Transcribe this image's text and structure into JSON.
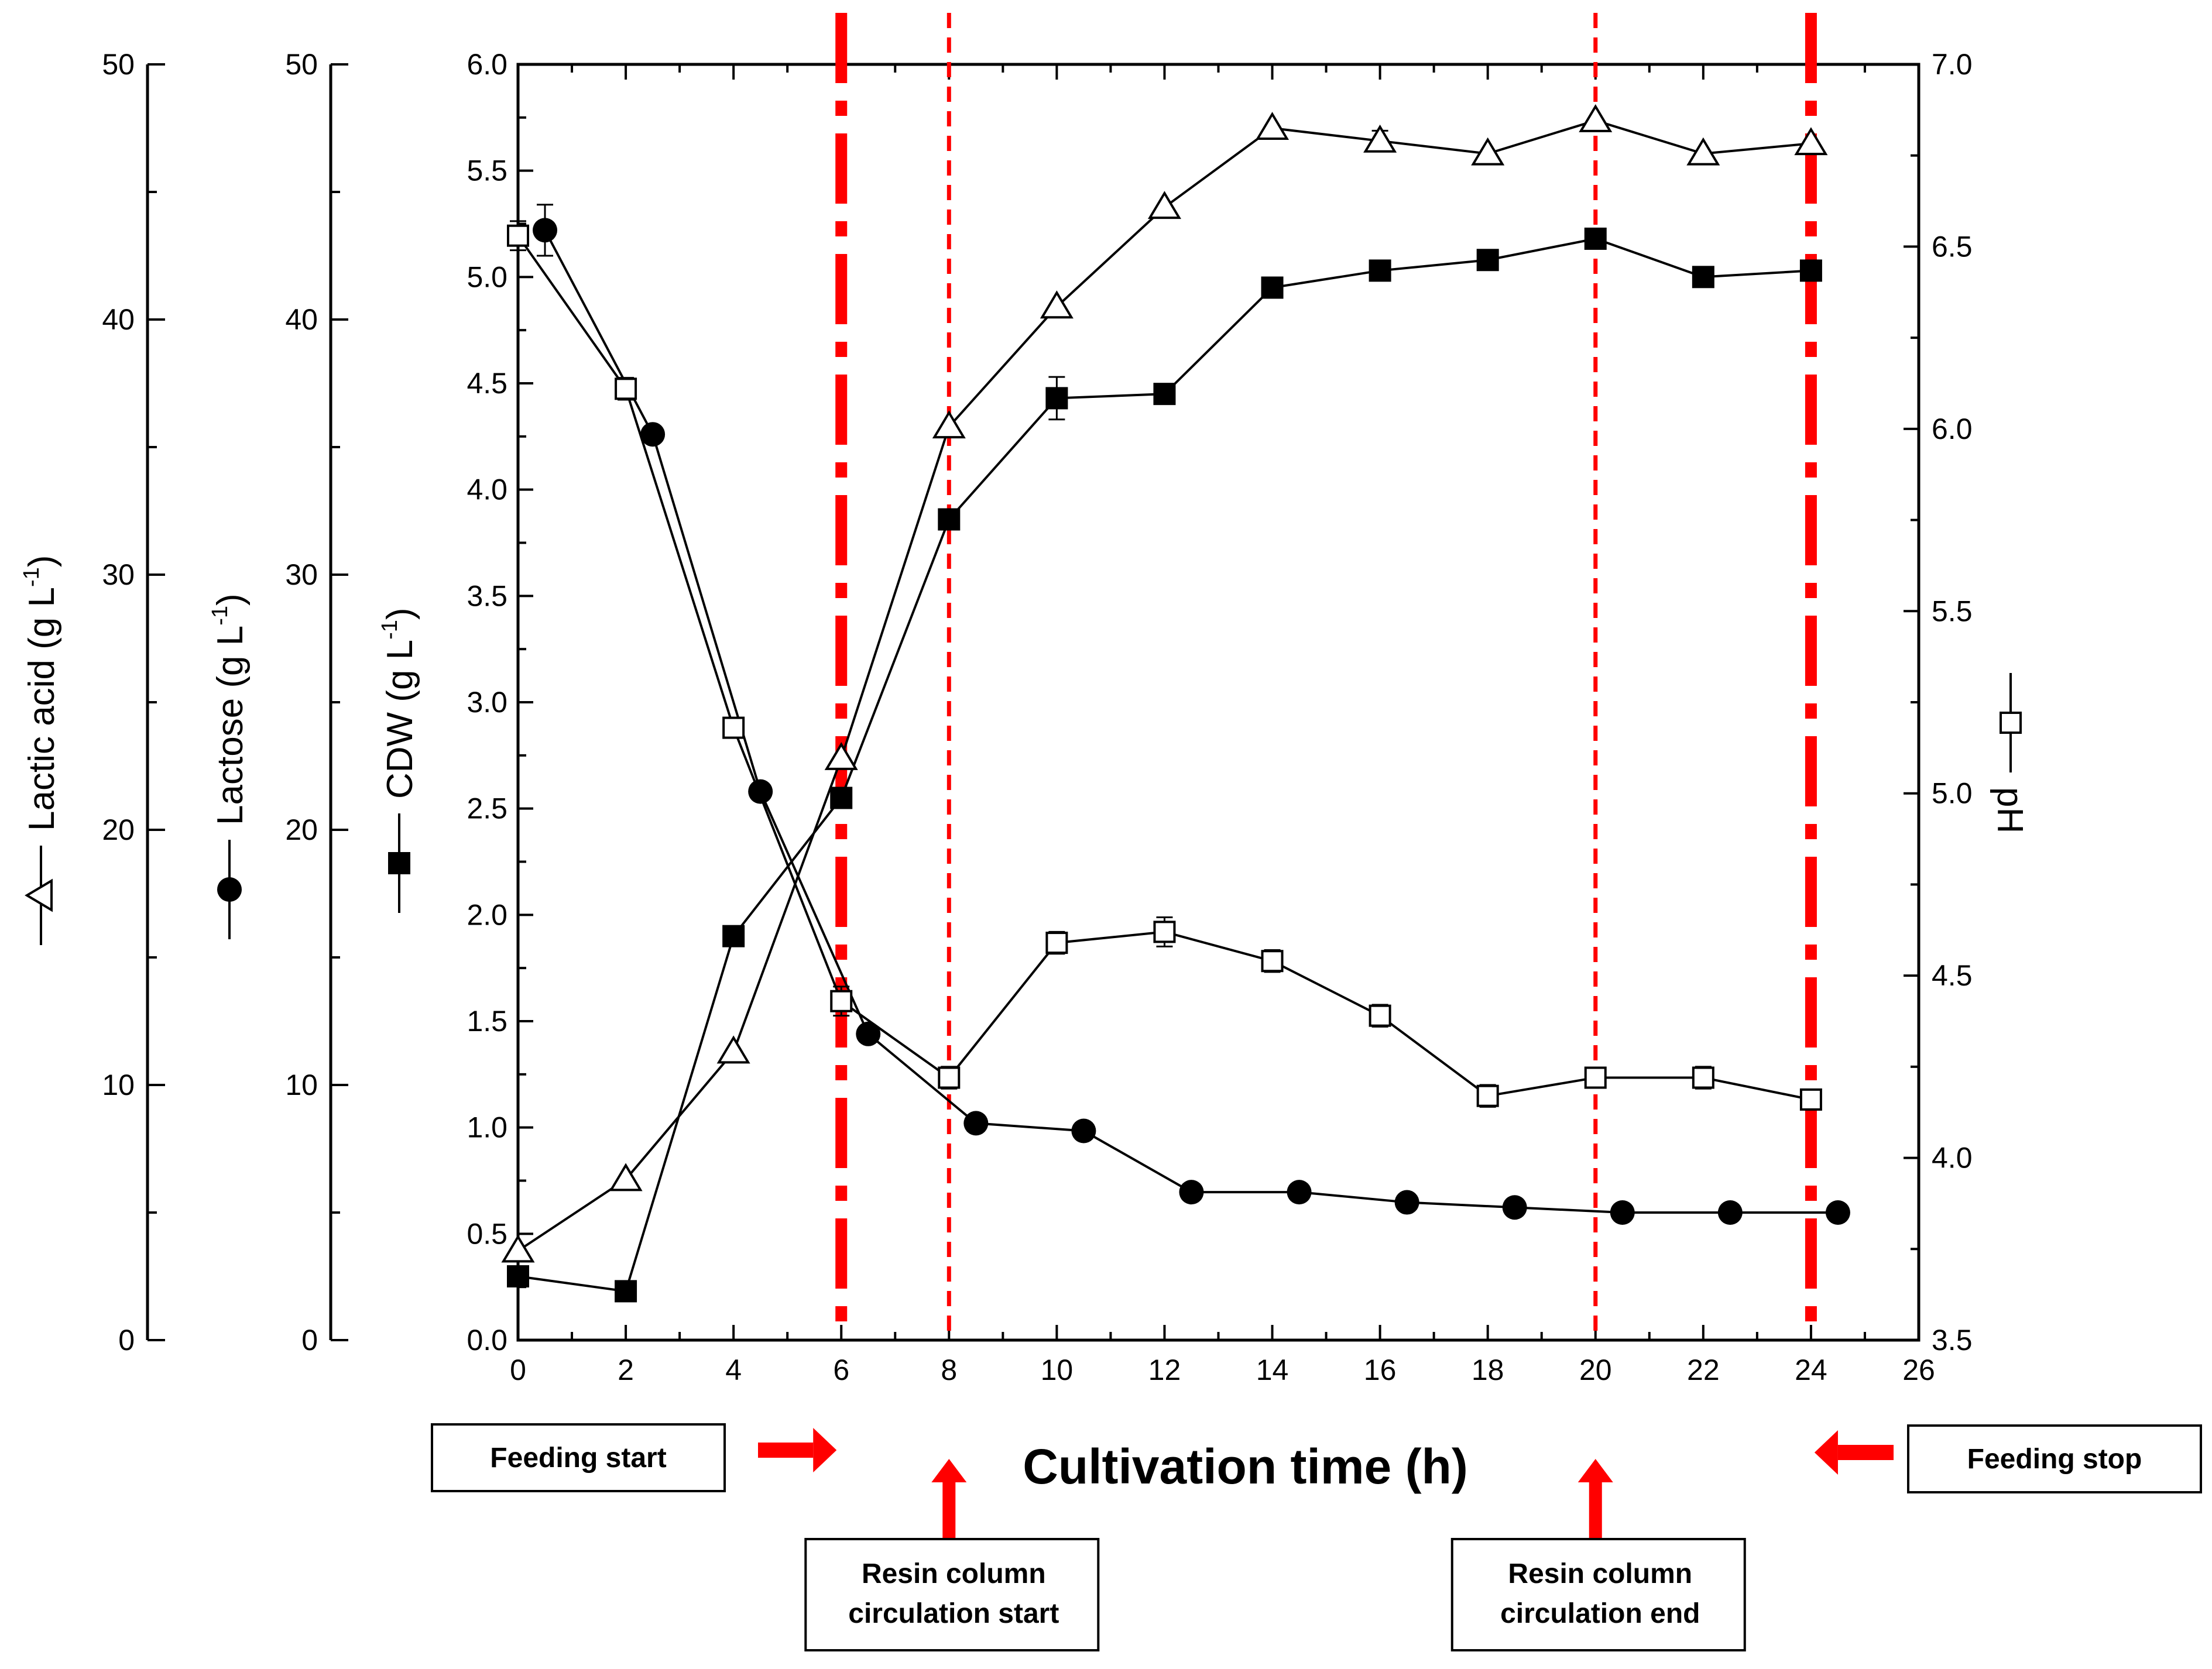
{
  "chart_data": {
    "type": "line",
    "title": "",
    "xlabel": "Cultivation time (h)",
    "x_ticks": [
      0,
      2,
      4,
      6,
      8,
      10,
      12,
      14,
      16,
      18,
      20,
      22,
      24,
      26
    ],
    "xlim": [
      0,
      26
    ],
    "axes": {
      "cdw": {
        "label": "CDW (g L",
        "sup": "-1",
        "close": ")",
        "ylim": [
          0,
          6
        ],
        "ticks": [
          "0.0",
          "0.5",
          "1.0",
          "1.5",
          "2.0",
          "2.5",
          "3.0",
          "3.5",
          "4.0",
          "4.5",
          "5.0",
          "5.5",
          "6.0"
        ]
      },
      "lactose": {
        "label": "Lactose (g L",
        "sup": "-1",
        "close": ")",
        "ylim": [
          0,
          50
        ],
        "ticks": [
          "0",
          "10",
          "20",
          "30",
          "40",
          "50"
        ]
      },
      "lactic": {
        "label": "Lactic acid (g L",
        "sup": "-1",
        "close": ")",
        "ylim": [
          0,
          50
        ],
        "ticks": [
          "0",
          "10",
          "20",
          "30",
          "40",
          "50"
        ]
      },
      "ph": {
        "label": "pH",
        "ylim": [
          3.5,
          7.0
        ],
        "ticks": [
          "3.5",
          "4.0",
          "4.5",
          "5.0",
          "5.5",
          "6.0",
          "6.5",
          "7.0"
        ]
      }
    },
    "series": [
      {
        "name": "CDW",
        "marker": "filled-square",
        "axis": "cdw",
        "points": [
          [
            0,
            0.3
          ],
          [
            2,
            0.23
          ],
          [
            4,
            1.9
          ],
          [
            6,
            2.55
          ],
          [
            8,
            3.86
          ],
          [
            10,
            4.43
          ],
          [
            12,
            4.45
          ],
          [
            14,
            4.95
          ],
          [
            16,
            5.03
          ],
          [
            18,
            5.08
          ],
          [
            20,
            5.18
          ],
          [
            22,
            5.0
          ],
          [
            24,
            5.03
          ]
        ],
        "errors": [
          0,
          0,
          0,
          0,
          0,
          0.1,
          0,
          0,
          0,
          0,
          0,
          0,
          0
        ]
      },
      {
        "name": "Lactose",
        "marker": "filled-circle",
        "axis": "lactose",
        "points": [
          [
            0.5,
            43.5
          ],
          [
            2.5,
            35.5
          ],
          [
            4.5,
            21.5
          ],
          [
            6.5,
            12
          ],
          [
            8.5,
            8.5
          ],
          [
            10.5,
            8.2
          ],
          [
            12.5,
            5.8
          ],
          [
            14.5,
            5.8
          ],
          [
            16.5,
            5.4
          ],
          [
            18.5,
            5.2
          ],
          [
            20.5,
            5.0
          ],
          [
            22.5,
            5.0
          ],
          [
            24.5,
            5.0
          ]
        ],
        "errors": [
          1,
          0,
          0,
          0,
          0,
          0,
          0,
          0,
          0,
          0,
          0,
          0,
          0
        ]
      },
      {
        "name": "Lactic acid",
        "marker": "open-triangle",
        "axis": "lactic",
        "points": [
          [
            0,
            3.5
          ],
          [
            2,
            6.3
          ],
          [
            4,
            11.3
          ],
          [
            6,
            22.8
          ],
          [
            8,
            35.8
          ],
          [
            10,
            40.5
          ],
          [
            12,
            44.4
          ],
          [
            14,
            47.5
          ],
          [
            16,
            47.0
          ],
          [
            18,
            46.5
          ],
          [
            20,
            47.8
          ],
          [
            22,
            46.5
          ],
          [
            24,
            46.9
          ]
        ],
        "errors": [
          0,
          0,
          0,
          0,
          0,
          0,
          0,
          0,
          0.4,
          0,
          0,
          0,
          0
        ]
      },
      {
        "name": "pH",
        "marker": "open-square",
        "axis": "ph",
        "points": [
          [
            0,
            6.53
          ],
          [
            2,
            6.11
          ],
          [
            4,
            5.18
          ],
          [
            6,
            4.43
          ],
          [
            8,
            4.22
          ],
          [
            10,
            4.59
          ],
          [
            12,
            4.62
          ],
          [
            14,
            4.54
          ],
          [
            16,
            4.39
          ],
          [
            18,
            4.17
          ],
          [
            20,
            4.22
          ],
          [
            22,
            4.22
          ],
          [
            24,
            4.16
          ]
        ],
        "errors": [
          0.04,
          0.03,
          0.02,
          0.04,
          0.03,
          0.03,
          0.04,
          0.03,
          0.03,
          0.03,
          0.02,
          0.03,
          0.02
        ]
      }
    ],
    "events": [
      {
        "x": 6,
        "style": "dashdot",
        "direction": "right",
        "label": "Feeding start",
        "label_pos": "left-of-arrow"
      },
      {
        "x": 8,
        "style": "dashed",
        "direction": "up",
        "label": "Resin column circulation start",
        "label_lines": [
          "Resin column",
          "circulation start"
        ],
        "label_pos": "below-arrow"
      },
      {
        "x": 20,
        "style": "dashed",
        "direction": "up",
        "label": "Resin column circulation end",
        "label_lines": [
          "Resin column",
          "circulation end"
        ],
        "label_pos": "below-arrow"
      },
      {
        "x": 24,
        "style": "dashdot",
        "direction": "left",
        "label": "Feeding stop",
        "label_pos": "right-of-arrow"
      }
    ],
    "colors": {
      "event": "#ff0000",
      "ink": "#000000"
    }
  }
}
